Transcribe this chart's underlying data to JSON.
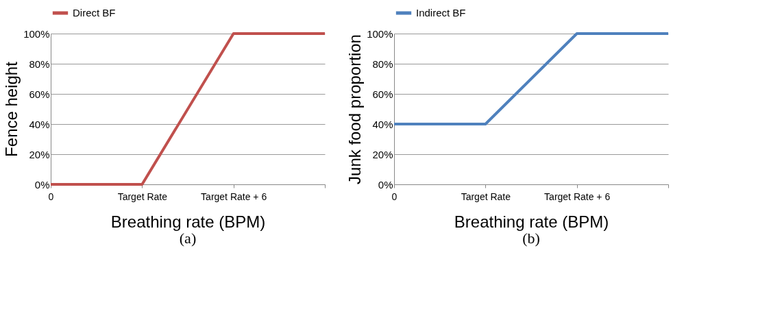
{
  "chart_data": [
    {
      "type": "line",
      "xlabel": "Breathing rate (BPM)",
      "ylabel": "Fence height",
      "categories": [
        "0",
        "Target Rate",
        "Target Rate + 6",
        null
      ],
      "series": [
        {
          "name": "Direct BF",
          "color": "#c0504d",
          "values": [
            0,
            0,
            100,
            100
          ]
        }
      ],
      "ylim": [
        0,
        100
      ],
      "yticks": [
        {
          "value": 0,
          "label": "0%"
        },
        {
          "value": 20,
          "label": "20%"
        },
        {
          "value": 40,
          "label": "40%"
        },
        {
          "value": 60,
          "label": "60%"
        },
        {
          "value": 80,
          "label": "80%"
        },
        {
          "value": 100,
          "label": "100%"
        }
      ],
      "grid": "y",
      "legend": "top",
      "marker": "none",
      "line_style": "solid",
      "annotations": [
        "(a)"
      ]
    },
    {
      "type": "line",
      "xlabel": "Breathing rate (BPM)",
      "ylabel": "Junk food proportion",
      "categories": [
        "0",
        "Target Rate",
        "Target Rate + 6",
        null
      ],
      "series": [
        {
          "name": "Indirect BF",
          "color": "#4f81bd",
          "values": [
            40,
            40,
            100,
            100
          ]
        }
      ],
      "ylim": [
        0,
        100
      ],
      "yticks": [
        {
          "value": 0,
          "label": "0%"
        },
        {
          "value": 20,
          "label": "20%"
        },
        {
          "value": 40,
          "label": "40%"
        },
        {
          "value": 60,
          "label": "60%"
        },
        {
          "value": 80,
          "label": "80%"
        },
        {
          "value": 100,
          "label": "100%"
        }
      ],
      "grid": "y",
      "legend": "top",
      "marker": "none",
      "line_style": "solid",
      "annotations": [
        "(b)"
      ]
    }
  ]
}
